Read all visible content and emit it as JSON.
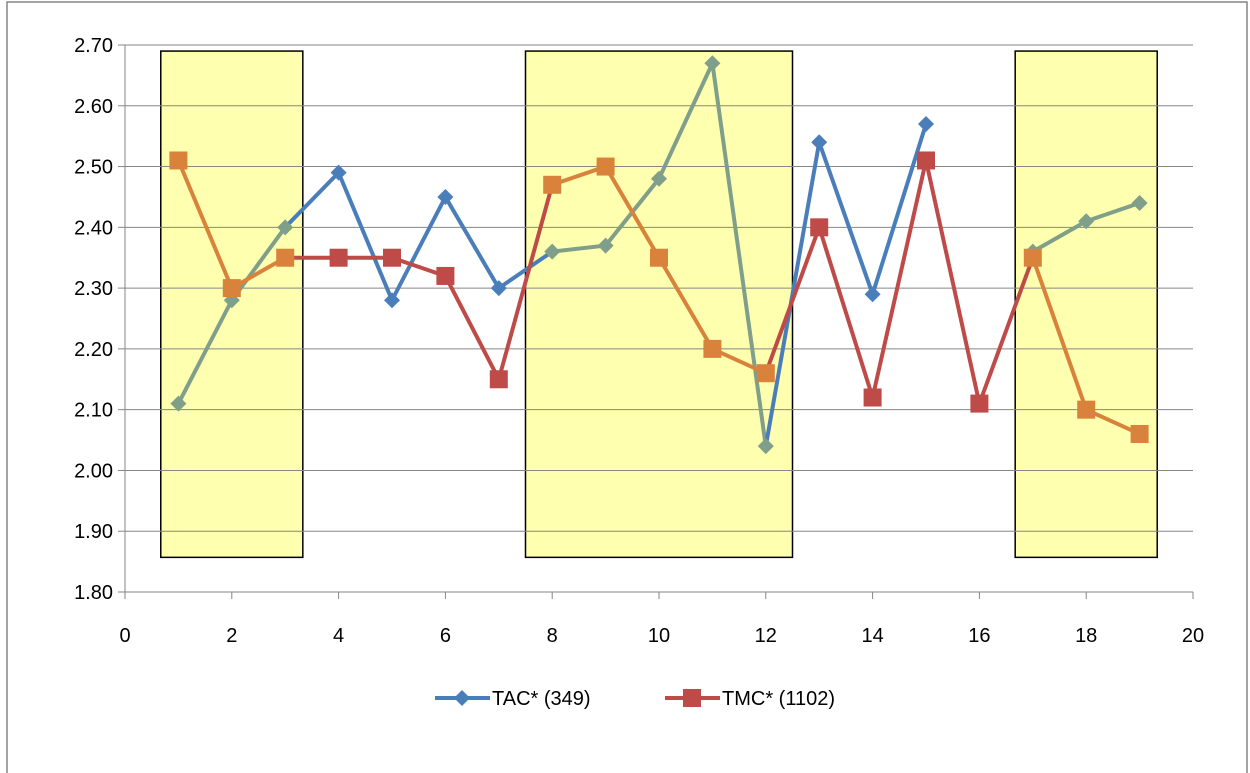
{
  "chart_data": {
    "type": "line",
    "title": "",
    "xlabel": "",
    "ylabel": "",
    "xlim": [
      0,
      20
    ],
    "ylim": [
      1.8,
      2.7
    ],
    "x_ticks": [
      "0",
      "2",
      "4",
      "6",
      "8",
      "10",
      "12",
      "14",
      "16",
      "18",
      "20"
    ],
    "x_tick_values": [
      0,
      2,
      4,
      6,
      8,
      10,
      12,
      14,
      16,
      18,
      20
    ],
    "y_ticks": [
      "1.80",
      "1.90",
      "2.00",
      "2.10",
      "2.20",
      "2.30",
      "2.40",
      "2.50",
      "2.60",
      "2.70"
    ],
    "y_tick_values": [
      1.8,
      1.9,
      2.0,
      2.1,
      2.2,
      2.3,
      2.4,
      2.5,
      2.6,
      2.7
    ],
    "grid": true,
    "legend_position": "bottom",
    "x": [
      1,
      2,
      3,
      4,
      5,
      6,
      7,
      8,
      9,
      10,
      11,
      12,
      13,
      14,
      15,
      16,
      17,
      18,
      19
    ],
    "series": [
      {
        "name": "TAC* (349)",
        "color": "#4a7ebb",
        "marker": "diamond",
        "values": [
          2.11,
          2.28,
          2.4,
          2.49,
          2.28,
          2.45,
          2.3,
          2.36,
          2.37,
          2.48,
          2.67,
          2.04,
          2.54,
          2.29,
          2.57,
          null,
          2.36,
          2.41,
          2.44
        ]
      },
      {
        "name": "TMC* (1102)",
        "color": "#be4b48",
        "marker": "square",
        "values": [
          2.51,
          2.3,
          2.35,
          2.35,
          2.35,
          2.32,
          2.15,
          2.47,
          2.5,
          2.35,
          2.2,
          2.16,
          2.4,
          2.12,
          2.51,
          2.11,
          2.35,
          2.1,
          2.06
        ]
      }
    ],
    "highlight_regions": [
      {
        "x_start": 0.67,
        "x_end": 3.33,
        "y_start": 1.857,
        "y_end": 2.69,
        "fill": "#ffffb0"
      },
      {
        "x_start": 7.5,
        "x_end": 12.5,
        "y_start": 1.857,
        "y_end": 2.69,
        "fill": "#ffffb0"
      },
      {
        "x_start": 16.67,
        "x_end": 19.33,
        "y_start": 1.857,
        "y_end": 2.69,
        "fill": "#ffffb0"
      }
    ],
    "highlight_series_colors": {
      "TAC* (349)": "#7f9f8a",
      "TMC* (1102)": "#d9823b"
    }
  }
}
